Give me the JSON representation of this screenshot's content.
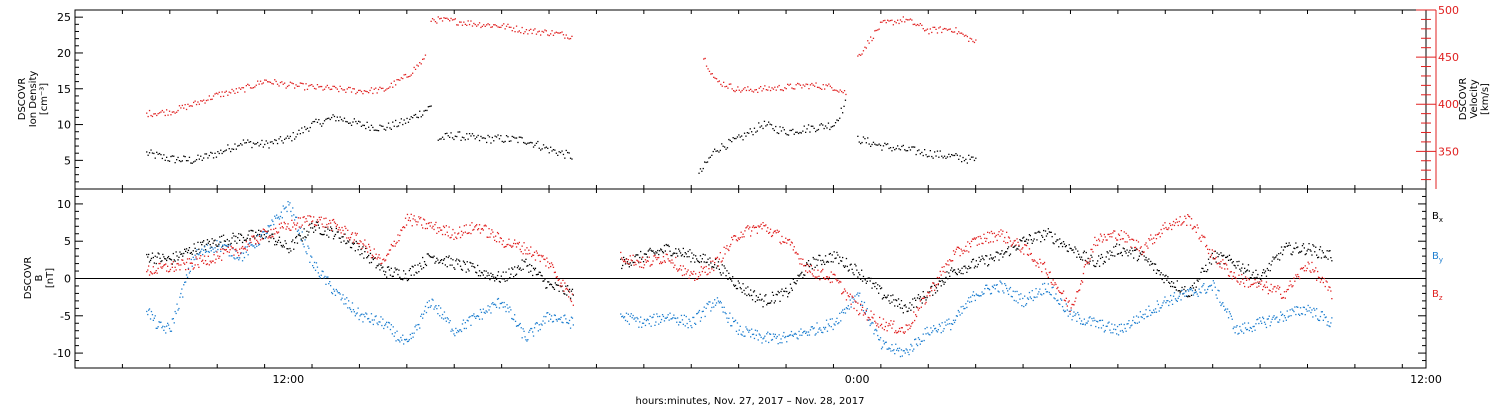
{
  "chart_data": [
    {
      "type": "scatter",
      "panel": "top",
      "ylabel_left": [
        "DSCOVR",
        "Ion Density",
        "[cm⁻³]"
      ],
      "ylabel_right": [
        "DSCOVR",
        "Velocity",
        "[km/s]"
      ],
      "y_left_ticks": [
        "5",
        "10",
        "15",
        "20",
        "25"
      ],
      "y_right_ticks": [
        "350",
        "400",
        "450",
        "500"
      ],
      "ylim_left": [
        1,
        26
      ],
      "ylim_right": [
        310,
        500
      ],
      "left_axis_color": "#000000",
      "right_axis_color": "#e02020",
      "series": [
        {
          "name": "Ion Density",
          "axis": "left",
          "color": "#000000",
          "segments": [
            {
              "x": [
                -6,
                -5,
                -4,
                -3,
                -2,
                -1,
                0,
                1,
                2,
                3,
                4,
                5,
                6
              ],
              "y": [
                6.0,
                5.2,
                5.0,
                6.0,
                7.5,
                7.2,
                8.0,
                10.0,
                11.0,
                10.0,
                9.5,
                10.5,
                12.5
              ]
            },
            {
              "x": [
                6.3,
                7,
                8,
                9,
                10,
                11,
                12
              ],
              "y": [
                8.0,
                8.5,
                8.0,
                8.0,
                7.8,
                6.5,
                5.5
              ]
            },
            {
              "x": [
                17.3,
                18,
                19,
                20,
                21,
                22,
                23,
                23.5
              ],
              "y": [
                3.0,
                6.5,
                8.0,
                10.0,
                9.0,
                9.5,
                10.0,
                13.0
              ]
            },
            {
              "x": [
                24,
                25,
                26,
                27,
                28,
                29
              ],
              "y": [
                8.0,
                7.0,
                6.5,
                6.0,
                5.5,
                5.0
              ]
            }
          ]
        },
        {
          "name": "Velocity",
          "axis": "right",
          "color": "#e02020",
          "segments": [
            {
              "x": [
                -6,
                -5,
                -4,
                -3,
                -2,
                -1,
                0,
                1,
                2,
                3,
                4,
                5,
                5.8
              ],
              "y": [
                390,
                392,
                400,
                410,
                415,
                425,
                420,
                418,
                416,
                414,
                415,
                430,
                450
              ]
            },
            {
              "x": [
                6,
                7,
                8,
                9,
                10,
                11,
                12
              ],
              "y": [
                490,
                488,
                485,
                483,
                478,
                476,
                472
              ]
            },
            {
              "x": [
                17.5,
                18,
                19,
                20,
                21,
                22,
                23,
                23.5
              ],
              "y": [
                450,
                425,
                415,
                416,
                418,
                420,
                418,
                412
              ]
            },
            {
              "x": [
                24,
                25,
                26,
                27,
                28,
                29
              ],
              "y": [
                450,
                485,
                490,
                478,
                480,
                465
              ]
            }
          ]
        }
      ]
    },
    {
      "type": "scatter",
      "panel": "bottom",
      "ylabel": [
        "DSCOVR",
        "B",
        "[nT]"
      ],
      "y_ticks": [
        "-10",
        "-5",
        "0",
        "5",
        "10"
      ],
      "ylim": [
        -12,
        12
      ],
      "zero_line": true,
      "series": [
        {
          "name": "Bx",
          "label_main": "B",
          "label_sub": "x",
          "color": "#000000",
          "segments": [
            {
              "x": [
                -6,
                -5,
                -4,
                -3,
                -2,
                -1,
                0,
                1,
                2,
                3,
                4,
                5,
                6,
                7,
                8,
                9,
                10,
                11,
                12
              ],
              "y": [
                3.0,
                2.5,
                4.0,
                5.0,
                5.5,
                6.0,
                4.0,
                7.0,
                6.0,
                4.0,
                1.0,
                0.5,
                3.0,
                2.0,
                1.0,
                0.0,
                2.0,
                -1.0,
                -2.0
              ]
            },
            {
              "x": [
                14,
                15,
                16,
                17,
                18,
                19,
                20,
                21,
                22,
                23,
                24,
                25,
                26,
                27,
                28,
                29,
                30,
                31,
                32,
                33,
                34,
                35,
                36,
                37,
                38,
                39,
                40,
                41,
                42,
                43,
                44
              ],
              "y": [
                2.0,
                3.0,
                4.0,
                3.0,
                2.0,
                -1.0,
                -3.0,
                -2.0,
                2.0,
                3.0,
                1.0,
                -2.0,
                -4.0,
                -2.0,
                1.0,
                2.0,
                3.0,
                5.0,
                6.0,
                4.0,
                2.0,
                4.0,
                3.0,
                0.0,
                -2.0,
                3.0,
                2.0,
                0.0,
                4.0,
                4.0,
                3.0
              ]
            }
          ]
        },
        {
          "name": "By",
          "label_main": "B",
          "label_sub": "y",
          "color": "#1f7fd0",
          "segments": [
            {
              "x": [
                -6,
                -5.5,
                -5,
                -4,
                -3,
                -2,
                -1,
                0,
                1,
                2,
                3,
                4,
                5,
                6,
                7,
                8,
                9,
                10,
                11,
                12
              ],
              "y": [
                -4.0,
                -6.5,
                -6.8,
                3.0,
                4.5,
                3.0,
                6.0,
                10.0,
                2.0,
                -2.0,
                -5.0,
                -6.0,
                -9.0,
                -3.0,
                -7.0,
                -5.0,
                -3.0,
                -8.0,
                -5.0,
                -6.0
              ]
            },
            {
              "x": [
                14,
                15,
                16,
                17,
                18,
                19,
                20,
                21,
                22,
                23,
                24,
                25,
                26,
                27,
                28,
                29,
                30,
                31,
                32,
                33,
                34,
                35,
                36,
                37,
                38,
                39,
                40,
                41,
                42,
                43,
                44
              ],
              "y": [
                -5.0,
                -6.0,
                -5.0,
                -6.0,
                -3.0,
                -7.0,
                -8.0,
                -8.0,
                -7.0,
                -6.0,
                -2.0,
                -9.0,
                -10.0,
                -7.0,
                -6.0,
                -2.0,
                -1.0,
                -3.0,
                -1.0,
                -5.0,
                -6.0,
                -7.0,
                -5.0,
                -3.0,
                -2.0,
                -1.0,
                -7.0,
                -6.0,
                -5.0,
                -4.0,
                -6.0
              ]
            }
          ]
        },
        {
          "name": "Bz",
          "label_main": "B",
          "label_sub": "z",
          "color": "#e02020",
          "segments": [
            {
              "x": [
                -6,
                -5,
                -4,
                -3,
                -2,
                -1,
                0,
                1,
                2,
                3,
                4,
                5,
                6,
                7,
                8,
                9,
                10,
                11,
                12
              ],
              "y": [
                1.0,
                1.5,
                2.0,
                3.0,
                4.0,
                6.0,
                7.0,
                8.0,
                7.0,
                5.0,
                2.0,
                8.0,
                7.0,
                6.0,
                7.0,
                5.0,
                4.0,
                2.0,
                -3.0
              ]
            },
            {
              "x": [
                14,
                15,
                16,
                17,
                18,
                19,
                20,
                21,
                22,
                23,
                24,
                25,
                26,
                27,
                28,
                29,
                30,
                31,
                32,
                33,
                34,
                35,
                36,
                37,
                38,
                39,
                40,
                41,
                42,
                43,
                44
              ],
              "y": [
                3.0,
                2.0,
                3.0,
                0.0,
                2.0,
                6.0,
                7.0,
                5.0,
                1.0,
                0.0,
                -4.0,
                -6.0,
                -7.0,
                -2.0,
                3.0,
                5.0,
                6.0,
                4.0,
                1.0,
                -4.0,
                5.0,
                6.0,
                4.0,
                7.0,
                8.0,
                3.0,
                0.0,
                -1.0,
                -2.0,
                2.0,
                -2.0
              ]
            }
          ]
        }
      ]
    }
  ],
  "x_axis": {
    "xlabel": "hours:minutes, Nov. 27, 2017 – Nov. 28, 2017",
    "xlim": [
      -9,
      48
    ],
    "tick_labels": [
      {
        "value": 0,
        "label": "12:00"
      },
      {
        "value": 24,
        "label": "0:00"
      },
      {
        "value": 48,
        "label": "12:00"
      }
    ]
  }
}
